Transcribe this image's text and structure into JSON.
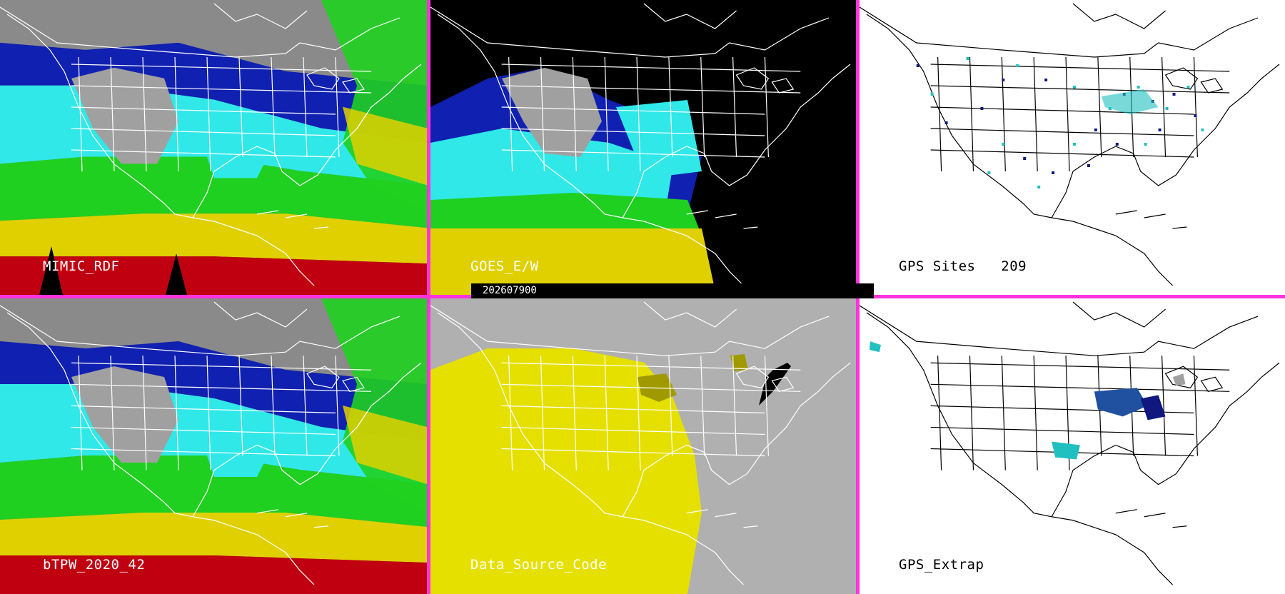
{
  "panels": [
    {
      "id": "mimic",
      "label": "MIMIC_RDF",
      "style": "tpw"
    },
    {
      "id": "goes",
      "label": "GOES_E/W",
      "style": "goes"
    },
    {
      "id": "gps",
      "label": "GPS Sites   209",
      "style": "gps"
    },
    {
      "id": "btpw",
      "label": "bTPW_2020_42",
      "style": "tpw"
    },
    {
      "id": "dsc",
      "label": "Data_Source_Code",
      "style": "dsc"
    },
    {
      "id": "gpsx",
      "label": "GPS_Extrap",
      "style": "gpsx"
    }
  ],
  "timestamp": "202607900",
  "colors": {
    "divider": "#ff33dd",
    "tpw_red": "#c00010",
    "tpw_yellow": "#e0d000",
    "tpw_green": "#20d020",
    "tpw_cyan": "#30e8e8",
    "tpw_blue": "#1020b0",
    "dry_gray": "#a0a0a0",
    "dsc_yellow": "#e6e000",
    "dsc_olive": "#a09a00",
    "dsc_gray": "#b0b0b0",
    "gps_dark": "#101880",
    "gps_cyan": "#20c0c0"
  }
}
